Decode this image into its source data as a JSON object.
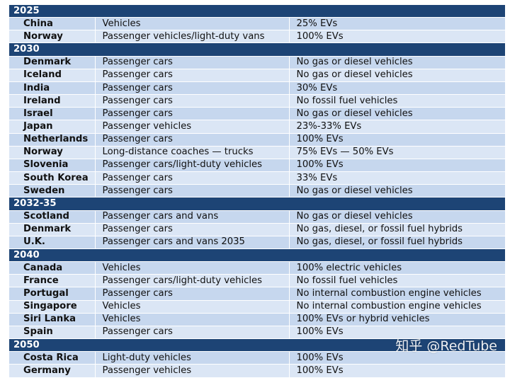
{
  "sections": [
    {
      "year": "2025",
      "rows": [
        [
          "China",
          "Vehicles",
          "25% EVs"
        ],
        [
          "Norway",
          "Passenger vehicles/light-duty vans",
          "100% EVs"
        ]
      ]
    },
    {
      "year": "2030",
      "rows": [
        [
          "Denmark",
          "Passenger cars",
          "No gas or diesel vehicles"
        ],
        [
          "Iceland",
          "Passenger cars",
          "No gas or diesel vehicles"
        ],
        [
          "India",
          "Passenger cars",
          "30% EVs"
        ],
        [
          "Ireland",
          "Passenger cars",
          "No fossil fuel vehicles"
        ],
        [
          "Israel",
          "Passenger cars",
          "No gas or diesel vehicles"
        ],
        [
          "Japan",
          "Passenger vehicles",
          "23%-33% EVs"
        ],
        [
          "Netherlands",
          "Passenger cars",
          "100% EVs"
        ],
        [
          "Norway",
          "Long-distance coaches — trucks",
          "75% EVs — 50% EVs"
        ],
        [
          "Slovenia",
          "Passenger cars/light-duty vehicles",
          "100% EVs"
        ],
        [
          "South Korea",
          "Passenger cars",
          "33% EVs"
        ],
        [
          "Sweden",
          "Passenger cars",
          "No gas or diesel vehicles"
        ]
      ]
    },
    {
      "year": "2032-35",
      "rows": [
        [
          "Scotland",
          "Passenger cars and vans",
          "No gas or diesel vehicles"
        ],
        [
          "Denmark",
          "Passenger cars",
          "No gas, diesel, or fossil fuel hybrids"
        ],
        [
          "U.K.",
          "Passenger cars and vans 2035",
          "No gas, diesel, or fossil fuel hybrids"
        ]
      ]
    },
    {
      "year": "2040",
      "rows": [
        [
          "Canada",
          "Vehicles",
          "100% electric vehicles"
        ],
        [
          "France",
          "Passenger cars/light-duty vehicles",
          "No fossil fuel vehicles"
        ],
        [
          "Portugal",
          "Passenger cars",
          "No internal combustion engine vehicles"
        ],
        [
          "Singapore",
          "Vehicles",
          "No internal combustion engine vehicles"
        ],
        [
          "Siri Lanka",
          "Vehicles",
          "100% EVs or hybrid vehicles"
        ],
        [
          "Spain",
          "Passenger cars",
          "100% EVs"
        ]
      ]
    },
    {
      "year": "2050",
      "rows": [
        [
          "Costa Rica",
          "Light-duty vehicles",
          "100% EVs"
        ],
        [
          "Germany",
          "Passenger vehicles",
          "100% EVs"
        ]
      ]
    }
  ],
  "watermark": "知乎 @RedTube",
  "colors": {
    "header": "#1d4475",
    "row": "#c6d7ee",
    "row_alt": "#dbe6f5"
  }
}
